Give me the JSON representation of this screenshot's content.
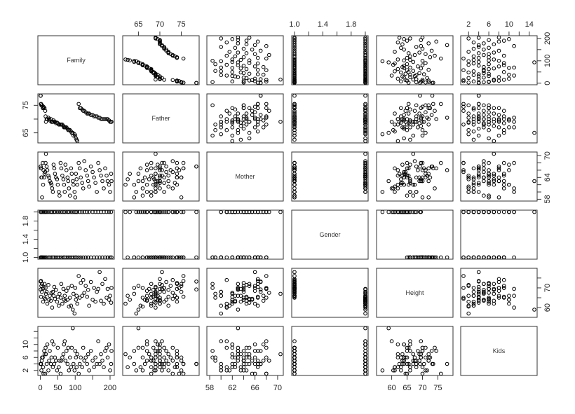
{
  "chart_data": {
    "type": "scatter",
    "subtype": "scatterplot-matrix",
    "variables": [
      "Family",
      "Father",
      "Mother",
      "Gender",
      "Height",
      "Kids"
    ],
    "ranges": {
      "Family": [
        1,
        204
      ],
      "Father": [
        62,
        78.5
      ],
      "Mother": [
        58,
        70.5
      ],
      "Gender": [
        1,
        2
      ],
      "Height": [
        56,
        79
      ],
      "Kids": [
        1,
        15
      ]
    },
    "axes": [
      {
        "var": "Family",
        "side": "bottom",
        "col": 0,
        "ticks": [
          0,
          50,
          100,
          150,
          200
        ],
        "labels": [
          "0",
          "50",
          "100",
          "",
          "200"
        ]
      },
      {
        "var": "Father",
        "side": "top",
        "col": 1,
        "ticks": [
          65,
          70,
          75
        ],
        "labels": [
          "65",
          "70",
          "75"
        ]
      },
      {
        "var": "Mother",
        "side": "bottom",
        "col": 2,
        "ticks": [
          58,
          60,
          62,
          64,
          66,
          68,
          70
        ],
        "labels": [
          "58",
          "",
          "62",
          "",
          "66",
          "",
          "70"
        ]
      },
      {
        "var": "Gender",
        "side": "top",
        "col": 3,
        "ticks": [
          1.0,
          1.2,
          1.4,
          1.6,
          1.8,
          2.0
        ],
        "labels": [
          "1.0",
          "",
          "1.4",
          "",
          "1.8",
          ""
        ]
      },
      {
        "var": "Height",
        "side": "bottom",
        "col": 4,
        "ticks": [
          60,
          65,
          70,
          75
        ],
        "labels": [
          "60",
          "65",
          "70",
          "75"
        ]
      },
      {
        "var": "Kids",
        "side": "top",
        "col": 5,
        "ticks": [
          2,
          4,
          6,
          8,
          10,
          12,
          14
        ],
        "labels": [
          "2",
          "",
          "6",
          "",
          "10",
          "",
          "14"
        ]
      },
      {
        "var": "Family",
        "side": "right",
        "row": 0,
        "ticks": [
          0,
          50,
          100,
          150,
          200
        ],
        "labels": [
          "0",
          "",
          "100",
          "",
          "200"
        ]
      },
      {
        "var": "Father",
        "side": "left",
        "row": 1,
        "ticks": [
          65,
          70,
          75
        ],
        "labels": [
          "65",
          "",
          "75"
        ]
      },
      {
        "var": "Mother",
        "side": "right",
        "row": 2,
        "ticks": [
          58,
          60,
          62,
          64,
          66,
          68,
          70
        ],
        "labels": [
          "58",
          "",
          "",
          "64",
          "",
          "",
          "70"
        ]
      },
      {
        "var": "Gender",
        "side": "left",
        "row": 3,
        "ticks": [
          1.0,
          1.2,
          1.4,
          1.6,
          1.8,
          2.0
        ],
        "labels": [
          "1.0",
          "",
          "1.4",
          "",
          "1.8",
          ""
        ]
      },
      {
        "var": "Height",
        "side": "right",
        "row": 4,
        "ticks": [
          60,
          65,
          70,
          75
        ],
        "labels": [
          "60",
          "",
          "70",
          ""
        ]
      },
      {
        "var": "Kids",
        "side": "left",
        "row": 5,
        "ticks": [
          2,
          4,
          6,
          8,
          10,
          12,
          14
        ],
        "labels": [
          "2",
          "",
          "6",
          "",
          "10",
          "",
          ""
        ]
      }
    ],
    "point_color": "#000000",
    "grid": false,
    "columns": [
      "Family",
      "Father",
      "Mother",
      "Gender",
      "Height",
      "Kids"
    ],
    "rows": [
      [
        1,
        78.5,
        67.0,
        1,
        73.2,
        4
      ],
      [
        1,
        78.5,
        67.0,
        2,
        69.2,
        4
      ],
      [
        2,
        75.5,
        66.5,
        1,
        73.5,
        4
      ],
      [
        2,
        75.5,
        66.5,
        2,
        65.5,
        4
      ],
      [
        3,
        75.0,
        64.0,
        1,
        71.0,
        2
      ],
      [
        4,
        75.0,
        64.0,
        2,
        68.0,
        5
      ],
      [
        5,
        75.0,
        58.5,
        1,
        72.0,
        6
      ],
      [
        7,
        74.0,
        68.0,
        1,
        69.5,
        6
      ],
      [
        8,
        74.0,
        62.0,
        2,
        63.0,
        3
      ],
      [
        9,
        74.5,
        66.0,
        1,
        70.0,
        1
      ],
      [
        11,
        74.0,
        64.0,
        2,
        65.0,
        8
      ],
      [
        12,
        74.0,
        65.0,
        1,
        72.0,
        7
      ],
      [
        14,
        73.0,
        65.5,
        2,
        64.5,
        1
      ],
      [
        15,
        71.0,
        68.0,
        1,
        70.0,
        9
      ],
      [
        16,
        69.0,
        70.5,
        2,
        67.0,
        7
      ],
      [
        18,
        70.0,
        67.0,
        1,
        68.0,
        4
      ],
      [
        20,
        70.0,
        66.0,
        2,
        62.0,
        10
      ],
      [
        23,
        70.5,
        64.5,
        1,
        71.5,
        2
      ],
      [
        25,
        70.0,
        64.0,
        2,
        64.0,
        5
      ],
      [
        27,
        69.5,
        63.0,
        1,
        66.0,
        8
      ],
      [
        30,
        70.0,
        62.5,
        2,
        63.5,
        4
      ],
      [
        32,
        69.0,
        62.0,
        1,
        67.5,
        6
      ],
      [
        34,
        69.0,
        61.0,
        2,
        60.0,
        11
      ],
      [
        36,
        69.0,
        60.0,
        1,
        68.0,
        3
      ],
      [
        38,
        69.5,
        67.5,
        2,
        66.0,
        10
      ],
      [
        40,
        69.0,
        66.5,
        1,
        70.5,
        4
      ],
      [
        42,
        69.0,
        65.0,
        2,
        64.5,
        6
      ],
      [
        45,
        68.5,
        64.0,
        1,
        69.0,
        5
      ],
      [
        48,
        68.7,
        63.5,
        2,
        63.0,
        2
      ],
      [
        50,
        68.5,
        62.0,
        1,
        65.5,
        9
      ],
      [
        53,
        68.0,
        60.0,
        2,
        61.0,
        3
      ],
      [
        55,
        68.0,
        59.0,
        1,
        67.0,
        5
      ],
      [
        58,
        68.0,
        68.0,
        2,
        65.0,
        1
      ],
      [
        60,
        68.0,
        66.5,
        1,
        72.0,
        5
      ],
      [
        63,
        68.0,
        64.5,
        2,
        62.0,
        6
      ],
      [
        66,
        67.5,
        63.5,
        1,
        69.5,
        7
      ],
      [
        68,
        67.0,
        62.0,
        2,
        64.0,
        10
      ],
      [
        70,
        67.0,
        60.0,
        1,
        66.0,
        11
      ],
      [
        72,
        67.0,
        67.5,
        2,
        63.5,
        5
      ],
      [
        75,
        67.0,
        66.0,
        1,
        68.5,
        8
      ],
      [
        78,
        66.5,
        64.0,
        2,
        64.0,
        4
      ],
      [
        80,
        66.0,
        63.0,
        1,
        70.0,
        9
      ],
      [
        82,
        66.0,
        61.0,
        2,
        60.5,
        2
      ],
      [
        85,
        66.0,
        59.0,
        1,
        65.0,
        6
      ],
      [
        88,
        65.5,
        66.5,
        2,
        61.0,
        3
      ],
      [
        90,
        65.0,
        65.0,
        1,
        71.0,
        9
      ],
      [
        93,
        65.0,
        63.0,
        2,
        59.0,
        15
      ],
      [
        95,
        64.0,
        62.0,
        1,
        67.0,
        4
      ],
      [
        98,
        64.5,
        60.0,
        2,
        57.0,
        2
      ],
      [
        100,
        64.0,
        58.5,
        1,
        70.0,
        8
      ],
      [
        102,
        63.0,
        65.0,
        2,
        64.0,
        6
      ],
      [
        104,
        62.5,
        63.5,
        1,
        66.0,
        3
      ],
      [
        106,
        62.0,
        62.0,
        2,
        62.0,
        7
      ],
      [
        110,
        75.5,
        68.0,
        1,
        76.0,
        1
      ],
      [
        113,
        74.0,
        66.5,
        2,
        65.0,
        4
      ],
      [
        116,
        74.0,
        64.0,
        1,
        72.5,
        6
      ],
      [
        120,
        73.5,
        62.5,
        2,
        66.0,
        3
      ],
      [
        123,
        73.0,
        61.0,
        1,
        74.0,
        9
      ],
      [
        126,
        73.0,
        68.5,
        2,
        67.5,
        5
      ],
      [
        130,
        72.5,
        66.0,
        1,
        71.0,
        6
      ],
      [
        134,
        72.0,
        64.5,
        2,
        65.5,
        4
      ],
      [
        137,
        72.0,
        63.0,
        1,
        69.0,
        7
      ],
      [
        140,
        72.0,
        61.5,
        2,
        61.0,
        2
      ],
      [
        145,
        71.5,
        67.0,
        1,
        73.0,
        8
      ],
      [
        150,
        71.5,
        65.5,
        2,
        64.0,
        5
      ],
      [
        154,
        71.0,
        64.0,
        1,
        70.0,
        3
      ],
      [
        158,
        71.0,
        62.5,
        2,
        63.0,
        6
      ],
      [
        162,
        71.0,
        60.0,
        1,
        68.0,
        4
      ],
      [
        166,
        70.5,
        68.0,
        2,
        69.5,
        11
      ],
      [
        170,
        70.5,
        66.0,
        1,
        78.0,
        4
      ],
      [
        174,
        70.0,
        64.5,
        2,
        63.5,
        7
      ],
      [
        178,
        70.0,
        63.0,
        1,
        72.0,
        5
      ],
      [
        182,
        70.0,
        61.0,
        2,
        62.0,
        3
      ],
      [
        186,
        70.0,
        66.5,
        1,
        74.5,
        8
      ],
      [
        190,
        70.0,
        64.5,
        2,
        65.0,
        9
      ],
      [
        193,
        70.0,
        63.0,
        1,
        69.5,
        6
      ],
      [
        197,
        69.5,
        62.0,
        2,
        64.0,
        10
      ],
      [
        200,
        69.0,
        60.0,
        1,
        66.0,
        2
      ],
      [
        203,
        69.0,
        65.0,
        2,
        62.5,
        4
      ],
      [
        204,
        69.0,
        63.0,
        1,
        70.0,
        8
      ]
    ]
  }
}
